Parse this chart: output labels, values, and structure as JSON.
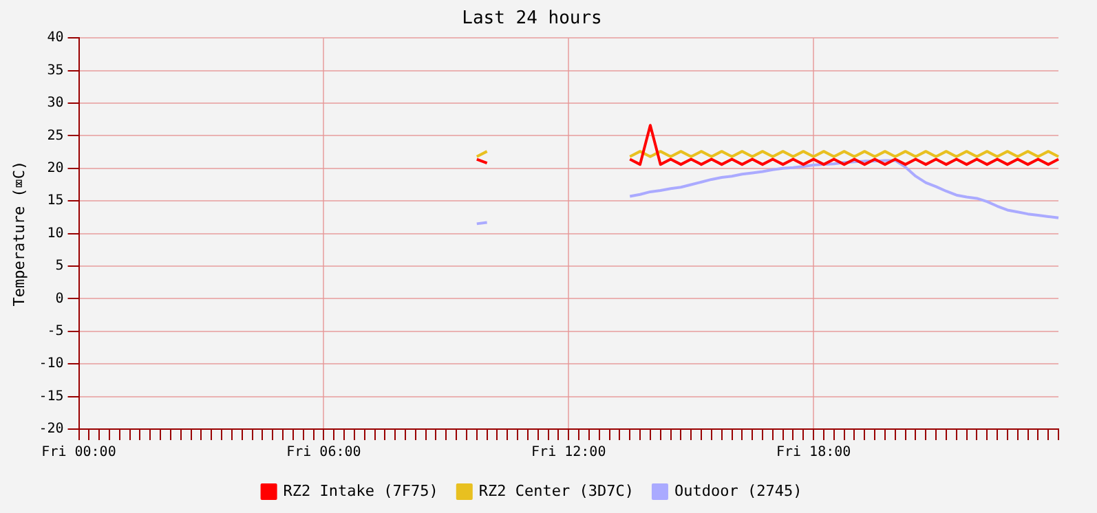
{
  "chart_data": {
    "type": "line",
    "title": "Last 24 hours",
    "ylabel": "Temperature (⌧C)",
    "categories": [
      "Fri 00:00",
      null,
      null,
      null,
      null,
      null,
      null,
      null,
      null,
      null,
      null,
      null,
      null,
      null,
      null,
      null,
      null,
      null,
      null,
      null,
      null,
      null,
      null,
      null,
      "Fri 06:00",
      null,
      null,
      null,
      null,
      null,
      null,
      null,
      null,
      null,
      null,
      null,
      null,
      null,
      null,
      null,
      null,
      null,
      null,
      null,
      null,
      null,
      null,
      null,
      "Fri 12:00",
      null,
      null,
      null,
      null,
      null,
      null,
      null,
      null,
      null,
      null,
      null,
      null,
      null,
      null,
      null,
      null,
      null,
      null,
      null,
      null,
      null,
      null,
      null,
      "Fri 18:00",
      null,
      null,
      null,
      null,
      null,
      null,
      null,
      null,
      null,
      null,
      null,
      null,
      null,
      null,
      null,
      null,
      null,
      null,
      null,
      null,
      null,
      null,
      null,
      null
    ],
    "ylim": [
      -20,
      40
    ],
    "yticks": [
      -20,
      -15,
      -10,
      -5,
      0,
      5,
      10,
      15,
      20,
      25,
      30,
      35,
      40
    ],
    "grid": true,
    "legend": "bottom",
    "marker": "none",
    "line_style": "solid",
    "series": [
      {
        "name": "RZ2 Intake (7F75)",
        "color": "#ff0000",
        "values": [
          null,
          null,
          null,
          null,
          null,
          null,
          null,
          null,
          null,
          null,
          null,
          null,
          null,
          null,
          null,
          null,
          null,
          null,
          null,
          null,
          null,
          null,
          null,
          null,
          null,
          null,
          null,
          null,
          null,
          null,
          null,
          null,
          null,
          null,
          null,
          null,
          null,
          null,
          null,
          21.4,
          20.8,
          null,
          null,
          null,
          null,
          null,
          null,
          null,
          null,
          null,
          null,
          null,
          null,
          null,
          21.4,
          20.6,
          26.6,
          20.6,
          21.4,
          20.6,
          21.4,
          20.6,
          21.4,
          20.6,
          21.4,
          20.6,
          21.4,
          20.6,
          21.4,
          20.6,
          21.4,
          20.6,
          21.4,
          20.6,
          21.4,
          20.6,
          21.4,
          20.6,
          21.4,
          20.6,
          21.4,
          20.6,
          21.4,
          20.6,
          21.4,
          20.6,
          21.4,
          20.6,
          21.4,
          20.6,
          21.4,
          20.6,
          21.4,
          20.6,
          21.4,
          20.6,
          21.4
        ]
      },
      {
        "name": "RZ2 Center (3D7C)",
        "color": "#e8c020",
        "values": [
          null,
          null,
          null,
          null,
          null,
          null,
          null,
          null,
          null,
          null,
          null,
          null,
          null,
          null,
          null,
          null,
          null,
          null,
          null,
          null,
          null,
          null,
          null,
          null,
          null,
          null,
          null,
          null,
          null,
          null,
          null,
          null,
          null,
          null,
          null,
          null,
          null,
          null,
          null,
          21.8,
          22.6,
          null,
          null,
          null,
          null,
          null,
          null,
          null,
          null,
          null,
          null,
          null,
          null,
          null,
          21.8,
          22.6,
          21.8,
          22.6,
          21.8,
          22.6,
          21.8,
          22.6,
          21.8,
          22.6,
          21.8,
          22.6,
          21.8,
          22.6,
          21.8,
          22.6,
          21.8,
          22.6,
          21.8,
          22.6,
          21.8,
          22.6,
          21.8,
          22.6,
          21.8,
          22.6,
          21.8,
          22.6,
          21.8,
          22.6,
          21.8,
          22.6,
          21.8,
          22.6,
          21.8,
          22.6,
          21.8,
          22.6,
          21.8,
          22.6,
          21.8,
          22.6,
          21.8
        ]
      },
      {
        "name": "Outdoor (2745)",
        "color": "#aaaaff",
        "values": [
          null,
          null,
          null,
          null,
          null,
          null,
          null,
          null,
          null,
          null,
          null,
          null,
          null,
          null,
          null,
          null,
          null,
          null,
          null,
          null,
          null,
          null,
          null,
          null,
          null,
          null,
          null,
          null,
          null,
          null,
          null,
          null,
          null,
          null,
          null,
          null,
          null,
          null,
          null,
          11.5,
          11.7,
          null,
          null,
          null,
          null,
          null,
          null,
          null,
          null,
          null,
          null,
          null,
          null,
          null,
          15.7,
          16,
          16.4,
          16.6,
          16.9,
          17.1,
          17.5,
          17.9,
          18.3,
          18.6,
          18.8,
          19.1,
          19.3,
          19.5,
          19.8,
          20,
          20.1,
          20.3,
          20.5,
          20.6,
          20.7,
          20.9,
          21,
          21.1,
          21.1,
          21.2,
          21.2,
          20.2,
          18.8,
          17.8,
          17.2,
          16.5,
          15.9,
          15.6,
          15.4,
          14.9,
          14.2,
          13.6,
          13.3,
          13,
          12.8,
          12.6,
          12.4
        ]
      }
    ]
  }
}
